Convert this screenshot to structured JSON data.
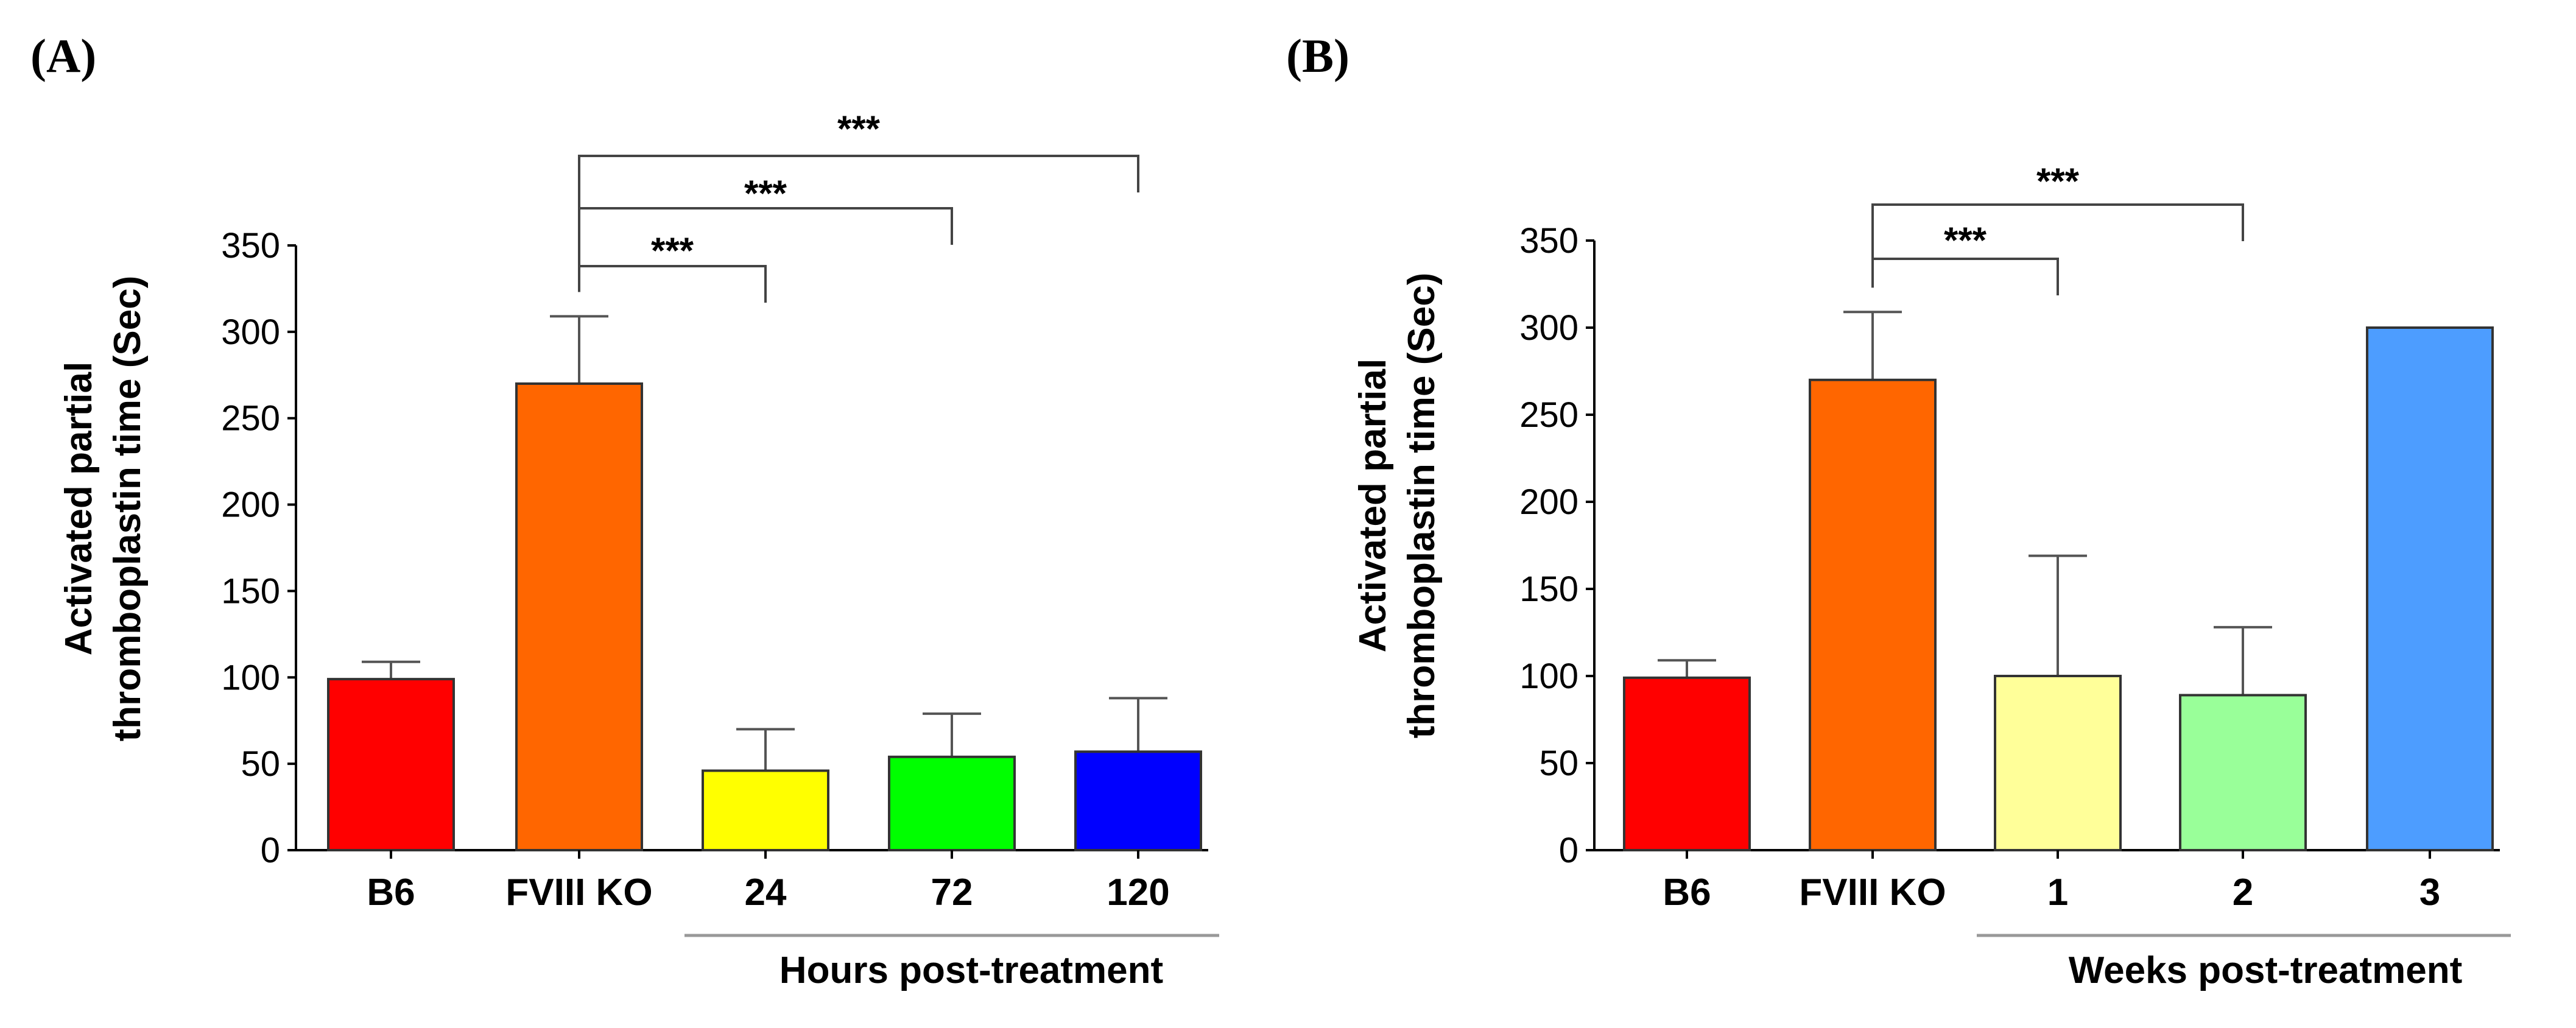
{
  "chart_data": [
    {
      "panel": "(A)",
      "type": "bar",
      "ylabel_line1": "Activated partial",
      "ylabel_line2": "thromboplastin time (Sec)",
      "ylim": [
        0,
        350
      ],
      "yticks": [
        0,
        50,
        100,
        150,
        200,
        250,
        300,
        350
      ],
      "categories": [
        "B6",
        "FVIII KO",
        "24",
        "72",
        "120"
      ],
      "values": [
        99,
        270,
        46,
        54,
        57
      ],
      "errors": [
        10,
        39,
        24,
        25,
        31
      ],
      "colors": [
        "#ff0000",
        "#ff6600",
        "#ffff00",
        "#00ff00",
        "#0000ff"
      ],
      "group_label": "Hours post-treatment",
      "group_categories": [
        "24",
        "72",
        "120"
      ],
      "significance": [
        {
          "from": "FVIII KO",
          "to": "24",
          "label": "***"
        },
        {
          "from": "FVIII KO",
          "to": "72",
          "label": "***"
        },
        {
          "from": "FVIII KO",
          "to": "120",
          "label": "***"
        }
      ]
    },
    {
      "panel": "(B)",
      "type": "bar",
      "ylabel_line1": "Activated partial",
      "ylabel_line2": "thromboplastin time (Sec)",
      "ylim": [
        0,
        350
      ],
      "yticks": [
        0,
        50,
        100,
        150,
        200,
        250,
        300,
        350
      ],
      "categories": [
        "B6",
        "FVIII KO",
        "1",
        "2",
        "3"
      ],
      "values": [
        99,
        270,
        100,
        89,
        300
      ],
      "errors": [
        10,
        39,
        69,
        39,
        0
      ],
      "colors": [
        "#ff0000",
        "#ff6600",
        "#ffff99",
        "#99ff99",
        "#4d9dff"
      ],
      "group_label": "Weeks post-treatment",
      "group_categories": [
        "1",
        "2",
        "3"
      ],
      "significance": [
        {
          "from": "FVIII KO",
          "to": "1",
          "label": "***"
        },
        {
          "from": "FVIII KO",
          "to": "2",
          "label": "***"
        }
      ]
    }
  ]
}
